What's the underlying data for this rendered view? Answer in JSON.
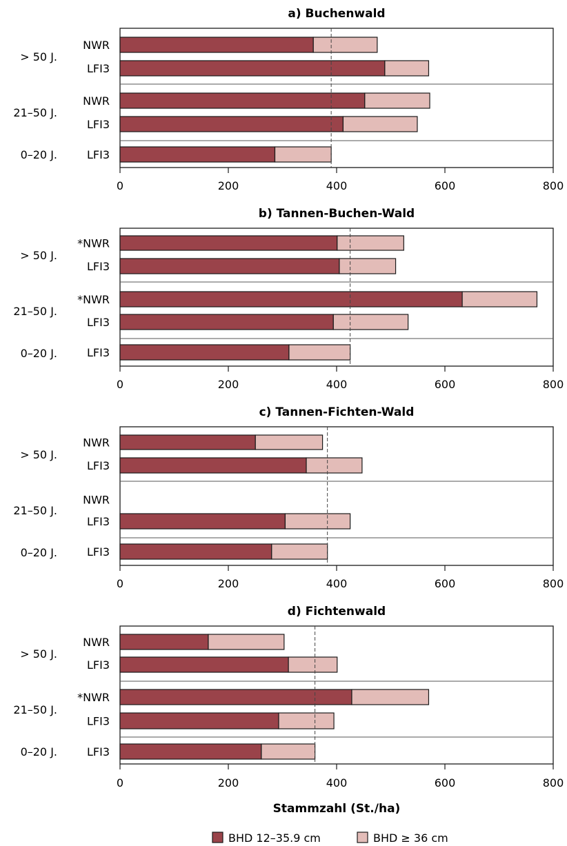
{
  "colors": {
    "small": "#9a434a",
    "large": "#e3bcb8",
    "frame": "#1a1a1a"
  },
  "chart_data": {
    "type": "bar",
    "orientation": "horizontal",
    "stacked": true,
    "xlabel": "Stammzahl (St./ha)",
    "xlim": [
      0,
      800
    ],
    "xticks": [
      0,
      200,
      400,
      600,
      800
    ],
    "legend": {
      "placement": "bottom",
      "items": [
        {
          "name": "BHD 12–35.9 cm",
          "color": "#9a434a"
        },
        {
          "name": "BHD ≥ 36 cm",
          "color": "#e3bcb8"
        }
      ]
    },
    "panels": [
      {
        "title": "a) Buchenwald",
        "reference_line": 390,
        "groups": [
          {
            "label": "> 50 J.",
            "bars": [
              {
                "label": "NWR",
                "small": 357,
                "large": 118
              },
              {
                "label": "LFI3",
                "small": 489,
                "large": 81
              }
            ]
          },
          {
            "label": "21–50 J.",
            "bars": [
              {
                "label": "NWR",
                "small": 452,
                "large": 120
              },
              {
                "label": "LFI3",
                "small": 412,
                "large": 137
              }
            ]
          },
          {
            "label": "0–20 J.",
            "bars": [
              {
                "label": "LFI3",
                "small": 286,
                "large": 104
              }
            ]
          }
        ]
      },
      {
        "title": "b) Tannen-Buchen-Wald",
        "reference_line": 425,
        "groups": [
          {
            "label": "> 50 J.",
            "bars": [
              {
                "label": "*NWR",
                "small": 401,
                "large": 123
              },
              {
                "label": "LFI3",
                "small": 405,
                "large": 104
              }
            ]
          },
          {
            "label": "21–50 J.",
            "bars": [
              {
                "label": "*NWR",
                "small": 632,
                "large": 138
              },
              {
                "label": "LFI3",
                "small": 394,
                "large": 138
              }
            ]
          },
          {
            "label": "0–20 J.",
            "bars": [
              {
                "label": "LFI3",
                "small": 312,
                "large": 113
              }
            ]
          }
        ]
      },
      {
        "title": "c) Tannen-Fichten-Wald",
        "reference_line": 383,
        "groups": [
          {
            "label": "> 50 J.",
            "bars": [
              {
                "label": "NWR",
                "small": 250,
                "large": 124
              },
              {
                "label": "LFI3",
                "small": 344,
                "large": 103
              }
            ]
          },
          {
            "label": "21–50 J.",
            "bars": [
              {
                "label": "NWR",
                "small": null,
                "large": null
              },
              {
                "label": "LFI3",
                "small": 305,
                "large": 120
              }
            ]
          },
          {
            "label": "0–20 J.",
            "bars": [
              {
                "label": "LFI3",
                "small": 280,
                "large": 103
              }
            ]
          }
        ]
      },
      {
        "title": "d) Fichtenwald",
        "reference_line": 360,
        "groups": [
          {
            "label": "> 50 J.",
            "bars": [
              {
                "label": "NWR",
                "small": 163,
                "large": 140
              },
              {
                "label": "LFI3",
                "small": 311,
                "large": 90
              }
            ]
          },
          {
            "label": "21–50 J.",
            "bars": [
              {
                "label": "*NWR",
                "small": 428,
                "large": 142
              },
              {
                "label": "LFI3",
                "small": 293,
                "large": 102
              }
            ]
          },
          {
            "label": "0–20 J.",
            "bars": [
              {
                "label": "LFI3",
                "small": 261,
                "large": 99
              }
            ]
          }
        ]
      }
    ]
  }
}
